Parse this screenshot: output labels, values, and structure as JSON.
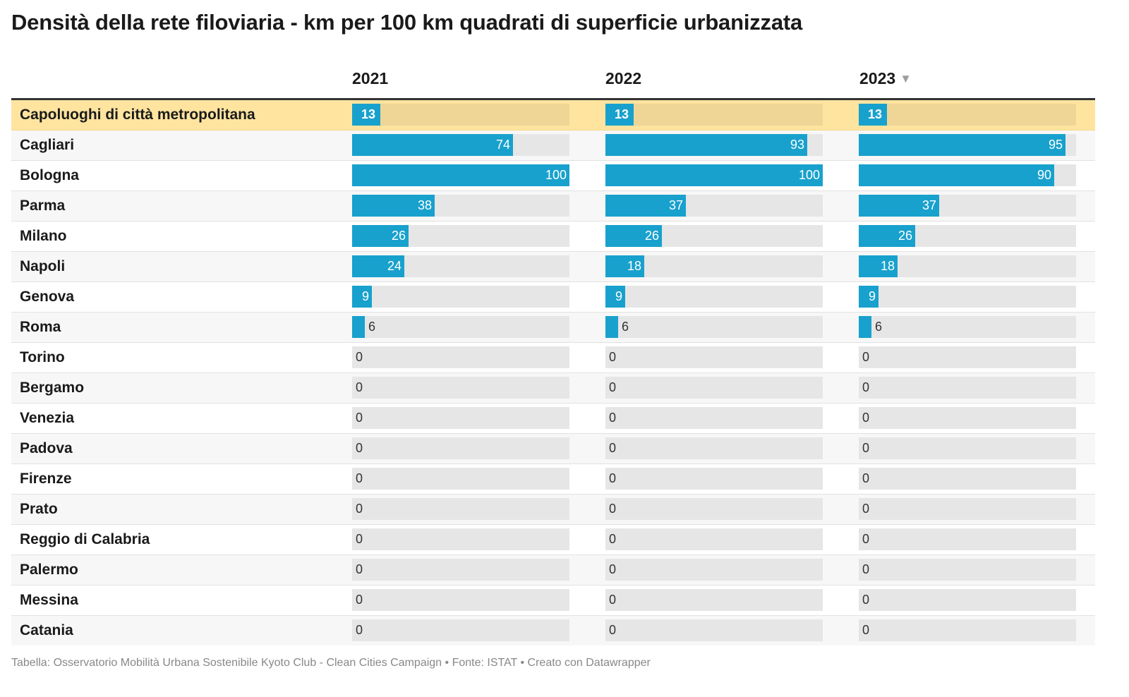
{
  "title": "Densità della rete filoviaria - km per 100 km quadrati di superficie urbanizzata",
  "footer": "Tabella: Osservatorio Mobilità Urbana Sostenibile Kyoto Club - Clean Cities Campaign • Fonte: ISTAT • Creato con Datawrapper",
  "sort_icon": "triangle-down-icon",
  "colors": {
    "bar": "#18a1cd",
    "track": "#e6e6e6",
    "highlight_row": "#fee49f"
  },
  "chart_data": {
    "type": "table",
    "columns": [
      "2021",
      "2022",
      "2023"
    ],
    "sorted_by": "2023",
    "bar_max": 100,
    "rows": [
      {
        "city": "Capoluoghi di città metropolitana",
        "values": [
          13,
          13,
          13
        ],
        "highlight": true
      },
      {
        "city": "Cagliari",
        "values": [
          74,
          93,
          95
        ]
      },
      {
        "city": "Bologna",
        "values": [
          100,
          100,
          90
        ]
      },
      {
        "city": "Parma",
        "values": [
          38,
          37,
          37
        ]
      },
      {
        "city": "Milano",
        "values": [
          26,
          26,
          26
        ]
      },
      {
        "city": "Napoli",
        "values": [
          24,
          18,
          18
        ]
      },
      {
        "city": "Genova",
        "values": [
          9,
          9,
          9
        ]
      },
      {
        "city": "Roma",
        "values": [
          6,
          6,
          6
        ]
      },
      {
        "city": "Torino",
        "values": [
          0,
          0,
          0
        ]
      },
      {
        "city": "Bergamo",
        "values": [
          0,
          0,
          0
        ]
      },
      {
        "city": "Venezia",
        "values": [
          0,
          0,
          0
        ]
      },
      {
        "city": "Padova",
        "values": [
          0,
          0,
          0
        ]
      },
      {
        "city": "Firenze",
        "values": [
          0,
          0,
          0
        ]
      },
      {
        "city": "Prato",
        "values": [
          0,
          0,
          0
        ]
      },
      {
        "city": "Reggio di Calabria",
        "values": [
          0,
          0,
          0
        ]
      },
      {
        "city": "Palermo",
        "values": [
          0,
          0,
          0
        ]
      },
      {
        "city": "Messina",
        "values": [
          0,
          0,
          0
        ]
      },
      {
        "city": "Catania",
        "values": [
          0,
          0,
          0
        ]
      }
    ]
  }
}
